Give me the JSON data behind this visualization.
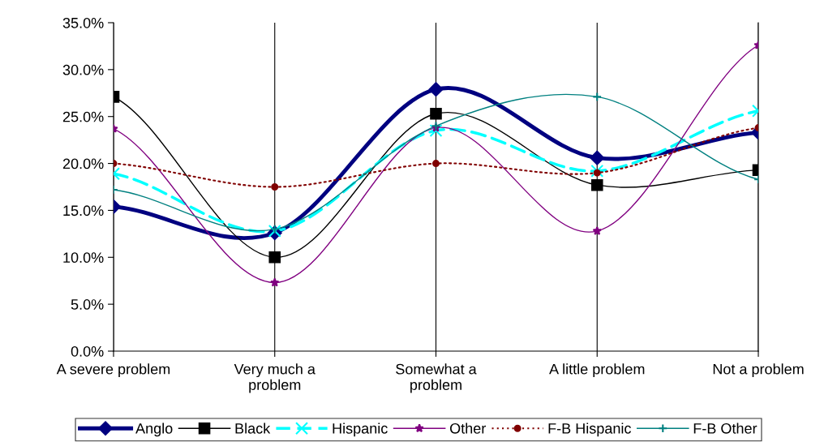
{
  "chart_data": {
    "type": "line",
    "categories": [
      "A severe problem",
      "Very much a\nproblem",
      "Somewhat a\nproblem",
      "A little problem",
      "Not a problem"
    ],
    "series": [
      {
        "name": "Anglo",
        "color": "#000080",
        "marker": "diamond",
        "line_style": "solid",
        "values": [
          15.4,
          12.6,
          27.9,
          20.6,
          23.3
        ]
      },
      {
        "name": "Black",
        "color": "#000000",
        "marker": "square",
        "line_style": "solid",
        "values": [
          27.1,
          10.0,
          25.3,
          17.7,
          19.3
        ]
      },
      {
        "name": "Hispanic",
        "color": "#00ffff",
        "marker": "cross",
        "line_style": "dashed",
        "values": [
          18.9,
          12.8,
          23.5,
          19.2,
          25.6
        ]
      },
      {
        "name": "Other",
        "color": "#800080",
        "marker": "star",
        "line_style": "solid",
        "values": [
          23.7,
          7.3,
          23.8,
          12.8,
          32.6
        ]
      },
      {
        "name": "F-B Hispanic",
        "color": "#800000",
        "marker": "circle",
        "line_style": "dotted",
        "values": [
          20.0,
          17.5,
          20.0,
          19.0,
          23.8
        ]
      },
      {
        "name": "F-B Other",
        "color": "#008080",
        "marker": "plus",
        "line_style": "solid",
        "values": [
          17.2,
          13.0,
          24.0,
          27.1,
          18.3
        ]
      }
    ],
    "ylim": [
      0,
      35
    ],
    "yticks": [
      {
        "value": 0,
        "label": "0.0%"
      },
      {
        "value": 5,
        "label": "5.0%"
      },
      {
        "value": 10,
        "label": "10.0%"
      },
      {
        "value": 15,
        "label": "15.0%"
      },
      {
        "value": 20,
        "label": "20.0%"
      },
      {
        "value": 25,
        "label": "25.0%"
      },
      {
        "value": 30,
        "label": "30.0%"
      },
      {
        "value": 35,
        "label": "35.0%"
      }
    ],
    "grid": "x",
    "legend": "bottom"
  }
}
